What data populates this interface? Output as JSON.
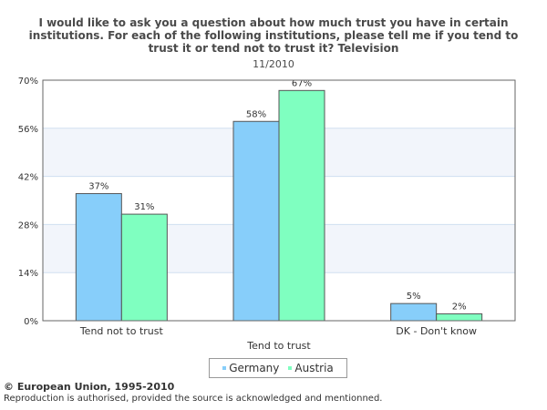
{
  "chart_data": {
    "type": "bar",
    "title": "I would like to ask you a question about how much trust you have in certain institutions. For each of the following institutions, please tell me if you tend to trust it or tend not to trust it? Television",
    "subtitle": "11/2010",
    "categories": [
      "Tend not to trust",
      "Tend to trust",
      "DK - Don't know"
    ],
    "series": [
      {
        "name": "Germany",
        "values": [
          37,
          58,
          5
        ],
        "labels": [
          "37%",
          "58%",
          "5%"
        ],
        "color": "#87cefa"
      },
      {
        "name": "Austria",
        "values": [
          31,
          67,
          2
        ],
        "labels": [
          "31%",
          "67%",
          "2%"
        ],
        "color": "#7fffc0"
      }
    ],
    "ylim": [
      0,
      70
    ],
    "yticks": [
      0,
      14,
      28,
      42,
      56,
      70
    ],
    "ytick_labels": [
      "0%",
      "14%",
      "28%",
      "42%",
      "56%",
      "70%"
    ],
    "xlabel": "",
    "ylabel": "",
    "grid": true,
    "legend": "bottom-center"
  },
  "footer": {
    "copyright": "© European Union, 1995-2010",
    "note": "Reproduction is authorised, provided the source is acknowledged and mentionned."
  },
  "colors": {
    "band": "#f2f5fb",
    "gridline": "#d0dff0",
    "border": "#666666"
  }
}
